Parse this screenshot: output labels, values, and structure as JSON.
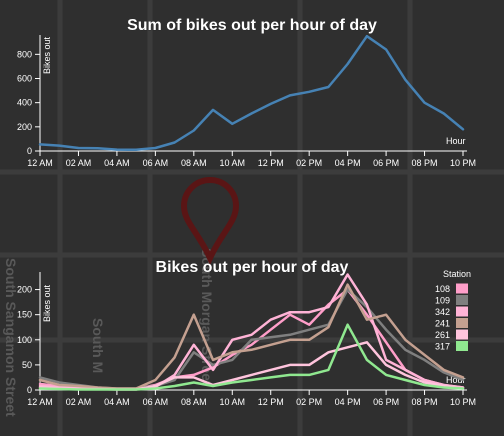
{
  "map": {
    "street_labels": [
      "South Morgan Street",
      "South M",
      "South Sangamon Street"
    ],
    "pin_color": "#5a1515"
  },
  "chart_data": [
    {
      "type": "line",
      "title": "Sum of bikes out per hour of day",
      "ylabel": "Bikes out",
      "xlabel": "Hour",
      "x": [
        0,
        1,
        2,
        3,
        4,
        5,
        6,
        7,
        8,
        9,
        10,
        11,
        12,
        13,
        14,
        15,
        16,
        17,
        18,
        19,
        20,
        21,
        22
      ],
      "xtick_values": [
        0,
        2,
        4,
        6,
        8,
        10,
        12,
        14,
        16,
        18,
        20,
        22
      ],
      "xtick_labels": [
        "12 AM",
        "02 AM",
        "04 AM",
        "06 AM",
        "08 AM",
        "10 AM",
        "12 PM",
        "02 PM",
        "04 PM",
        "06 PM",
        "08 PM",
        "10 PM"
      ],
      "ytick_values": [
        0,
        200,
        400,
        600,
        800
      ],
      "ylim": [
        0,
        960
      ],
      "series": [
        {
          "color": "#4682b4",
          "values": [
            55,
            45,
            25,
            22,
            12,
            10,
            25,
            70,
            170,
            340,
            225,
            310,
            390,
            460,
            490,
            530,
            720,
            950,
            840,
            590,
            400,
            310,
            180
          ]
        }
      ]
    },
    {
      "type": "line",
      "title": "Bikes out per hour of day",
      "ylabel": "Bikes out",
      "xlabel": "Hour",
      "x": [
        0,
        1,
        2,
        3,
        4,
        5,
        6,
        7,
        8,
        9,
        10,
        11,
        12,
        13,
        14,
        15,
        16,
        17,
        18,
        19,
        20,
        21,
        22
      ],
      "xtick_values": [
        0,
        2,
        4,
        6,
        8,
        10,
        12,
        14,
        16,
        18,
        20,
        22
      ],
      "xtick_labels": [
        "12 AM",
        "02 AM",
        "04 AM",
        "06 AM",
        "08 AM",
        "10 AM",
        "12 PM",
        "02 PM",
        "04 PM",
        "06 PM",
        "08 PM",
        "10 PM"
      ],
      "ytick_values": [
        0,
        50,
        100,
        150,
        200
      ],
      "ylim": [
        0,
        235
      ],
      "legend_title": "Station",
      "legend_position": "right",
      "series": [
        {
          "name": "108",
          "color": "#ff9ec9",
          "values": [
            12,
            8,
            5,
            3,
            2,
            2,
            10,
            25,
            30,
            45,
            70,
            90,
            120,
            150,
            130,
            170,
            200,
            150,
            95,
            40,
            20,
            10,
            5
          ]
        },
        {
          "name": "109",
          "color": "#7f7f7f",
          "values": [
            25,
            15,
            10,
            5,
            3,
            3,
            8,
            20,
            75,
            50,
            60,
            100,
            105,
            110,
            120,
            130,
            200,
            165,
            120,
            80,
            60,
            35,
            20
          ]
        },
        {
          "name": "342",
          "color": "#ffb3d6",
          "values": [
            8,
            5,
            4,
            3,
            2,
            2,
            6,
            30,
            90,
            40,
            100,
            110,
            140,
            155,
            155,
            165,
            230,
            170,
            60,
            40,
            20,
            10,
            5
          ]
        },
        {
          "name": "241",
          "color": "#c4a090",
          "values": [
            20,
            10,
            8,
            5,
            3,
            3,
            20,
            65,
            150,
            60,
            75,
            80,
            90,
            100,
            100,
            125,
            210,
            140,
            150,
            100,
            70,
            40,
            25
          ]
        },
        {
          "name": "261",
          "color": "#ffc4dd",
          "values": [
            5,
            3,
            2,
            2,
            1,
            1,
            8,
            25,
            25,
            10,
            20,
            30,
            40,
            50,
            50,
            75,
            85,
            95,
            50,
            30,
            15,
            8,
            3
          ]
        },
        {
          "name": "317",
          "color": "#90e890",
          "values": [
            3,
            2,
            1,
            1,
            1,
            1,
            3,
            8,
            15,
            8,
            15,
            20,
            25,
            30,
            30,
            40,
            130,
            60,
            30,
            20,
            10,
            5,
            3
          ]
        }
      ]
    }
  ]
}
